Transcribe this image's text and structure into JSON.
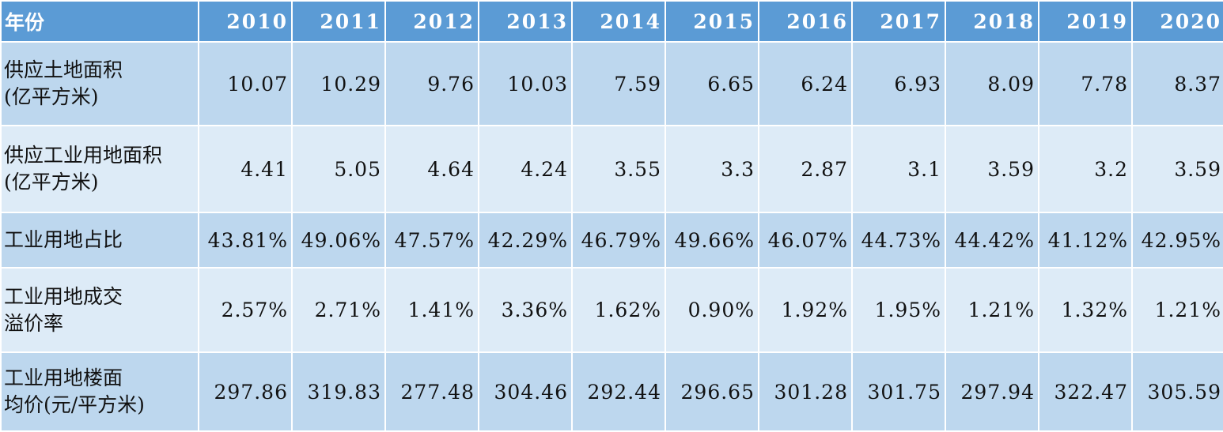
{
  "chart_data": {
    "type": "table",
    "header_label": "年份",
    "columns": [
      "2010",
      "2011",
      "2012",
      "2013",
      "2014",
      "2015",
      "2016",
      "2017",
      "2018",
      "2019",
      "2020"
    ],
    "rows": [
      {
        "label_lines": [
          "供应土地面积",
          "(亿平方米)"
        ],
        "values": [
          "10.07",
          "10.29",
          "9.76",
          "10.03",
          "7.59",
          "6.65",
          "6.24",
          "6.93",
          "8.09",
          "7.78",
          "8.37"
        ]
      },
      {
        "label_lines": [
          "供应工业用地面积",
          "(亿平方米)"
        ],
        "values": [
          "4.41",
          "5.05",
          "4.64",
          "4.24",
          "3.55",
          "3.3",
          "2.87",
          "3.1",
          "3.59",
          "3.2",
          "3.59"
        ]
      },
      {
        "label_lines": [
          "工业用地占比"
        ],
        "values": [
          "43.81%",
          "49.06%",
          "47.57%",
          "42.29%",
          "46.79%",
          "49.66%",
          "46.07%",
          "44.73%",
          "44.42%",
          "41.12%",
          "42.95%"
        ]
      },
      {
        "label_lines": [
          "工业用地成交",
          "溢价率"
        ],
        "values": [
          "2.57%",
          "2.71%",
          "1.41%",
          "3.36%",
          "1.62%",
          "0.90%",
          "1.92%",
          "1.95%",
          "1.21%",
          "1.32%",
          "1.21%"
        ]
      },
      {
        "label_lines": [
          "工业用地楼面",
          "均价(元/平方米)"
        ],
        "values": [
          "297.86",
          "319.83",
          "277.48",
          "304.46",
          "292.44",
          "296.65",
          "301.28",
          "301.75",
          "297.94",
          "322.47",
          "305.59"
        ]
      }
    ],
    "colors": {
      "header_bg": "#5b9bd5",
      "header_text": "#ffffff",
      "row_odd_bg": "#bdd7ee",
      "row_even_bg": "#ddebf7"
    }
  }
}
